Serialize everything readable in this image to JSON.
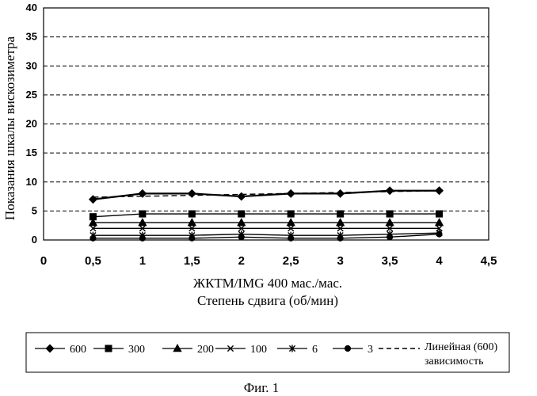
{
  "chart_data": {
    "type": "line",
    "ylabel": "Показания шкалы вискозиметра",
    "xlabel_line1": "ЖКТМ/IMG 400 мас./мас.",
    "xlabel_line2": "Степень сдвига (об/мин)",
    "xlim": [
      0,
      4.5
    ],
    "ylim": [
      0,
      40
    ],
    "x_ticks": [
      "0",
      "0,5",
      "1",
      "1,5",
      "2",
      "2,5",
      "3",
      "3,5",
      "4",
      "4,5"
    ],
    "y_ticks": [
      "0",
      "5",
      "10",
      "15",
      "20",
      "25",
      "30",
      "35",
      "40"
    ],
    "grid": "horizontal dashed",
    "legend_position": "bottom",
    "x": [
      0.5,
      1,
      1.5,
      2,
      2.5,
      3,
      3.5,
      4
    ],
    "series": [
      {
        "name": "600",
        "marker": "diamond",
        "values": [
          7,
          8,
          8,
          7.5,
          8,
          8,
          8.5,
          8.5
        ]
      },
      {
        "name": "300",
        "marker": "square",
        "values": [
          4,
          4.5,
          4.5,
          4.5,
          4.5,
          4.5,
          4.5,
          4.5
        ]
      },
      {
        "name": "200",
        "marker": "triangle",
        "values": [
          3,
          3,
          3,
          3,
          3,
          3,
          3,
          3
        ]
      },
      {
        "name": "100",
        "marker": "x",
        "values": [
          2,
          2,
          2,
          2,
          2,
          2,
          2,
          2
        ]
      },
      {
        "name": "6",
        "marker": "asterisk",
        "values": [
          0.8,
          0.8,
          0.8,
          1,
          0.8,
          0.8,
          1,
          1.2
        ]
      },
      {
        "name": "3",
        "marker": "circle",
        "values": [
          0.3,
          0.3,
          0.3,
          0.5,
          0.3,
          0.3,
          0.5,
          1
        ]
      }
    ],
    "trendline": {
      "name_line1": "Линейная (600)",
      "name_line2": "зависимость",
      "style": "dashed"
    }
  },
  "caption": "Фиг. 1"
}
